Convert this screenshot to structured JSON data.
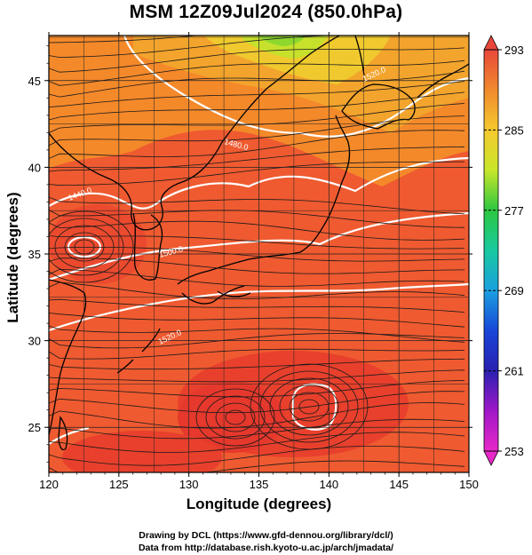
{
  "title": "MSM 12Z09Jul2024 (850.0hPa)",
  "x_axis": {
    "label": "Longitude (degrees)",
    "ticks": [
      "120",
      "125",
      "130",
      "135",
      "140",
      "145",
      "150"
    ],
    "range": [
      120,
      150
    ]
  },
  "y_axis": {
    "label": "Latitude  (degrees)",
    "ticks": [
      "25",
      "30",
      "35",
      "40",
      "45"
    ],
    "range": [
      22.4,
      47.6
    ]
  },
  "colorbar": {
    "ticks": [
      "293",
      "285",
      "277",
      "269",
      "261",
      "253"
    ],
    "range": [
      253,
      293
    ],
    "colors_top_to_bottom": [
      "#e8473a",
      "#f08a2e",
      "#f5c92e",
      "#c8e62a",
      "#2cc840",
      "#18c8a0",
      "#1aa0e0",
      "#1846d8",
      "#2a20b0",
      "#a018c8",
      "#e828c8"
    ]
  },
  "contours": {
    "labels": [
      "1440.0",
      "1480.0",
      "1500.0",
      "1520.0",
      "1520.0"
    ],
    "color": "#ffffff"
  },
  "credits": {
    "line1": "Drawing by DCL (https://www.gfd-dennou.org/library/dcl/)",
    "line2": "Data from http://database.rish.kyoto-u.ac.jp/arch/jmadata/"
  },
  "field_colors": {
    "warm": "#f04a30",
    "mid": "#f58a28",
    "cool": "#e8d02a",
    "coolest": "#a6e02a",
    "coast": "#000000"
  }
}
